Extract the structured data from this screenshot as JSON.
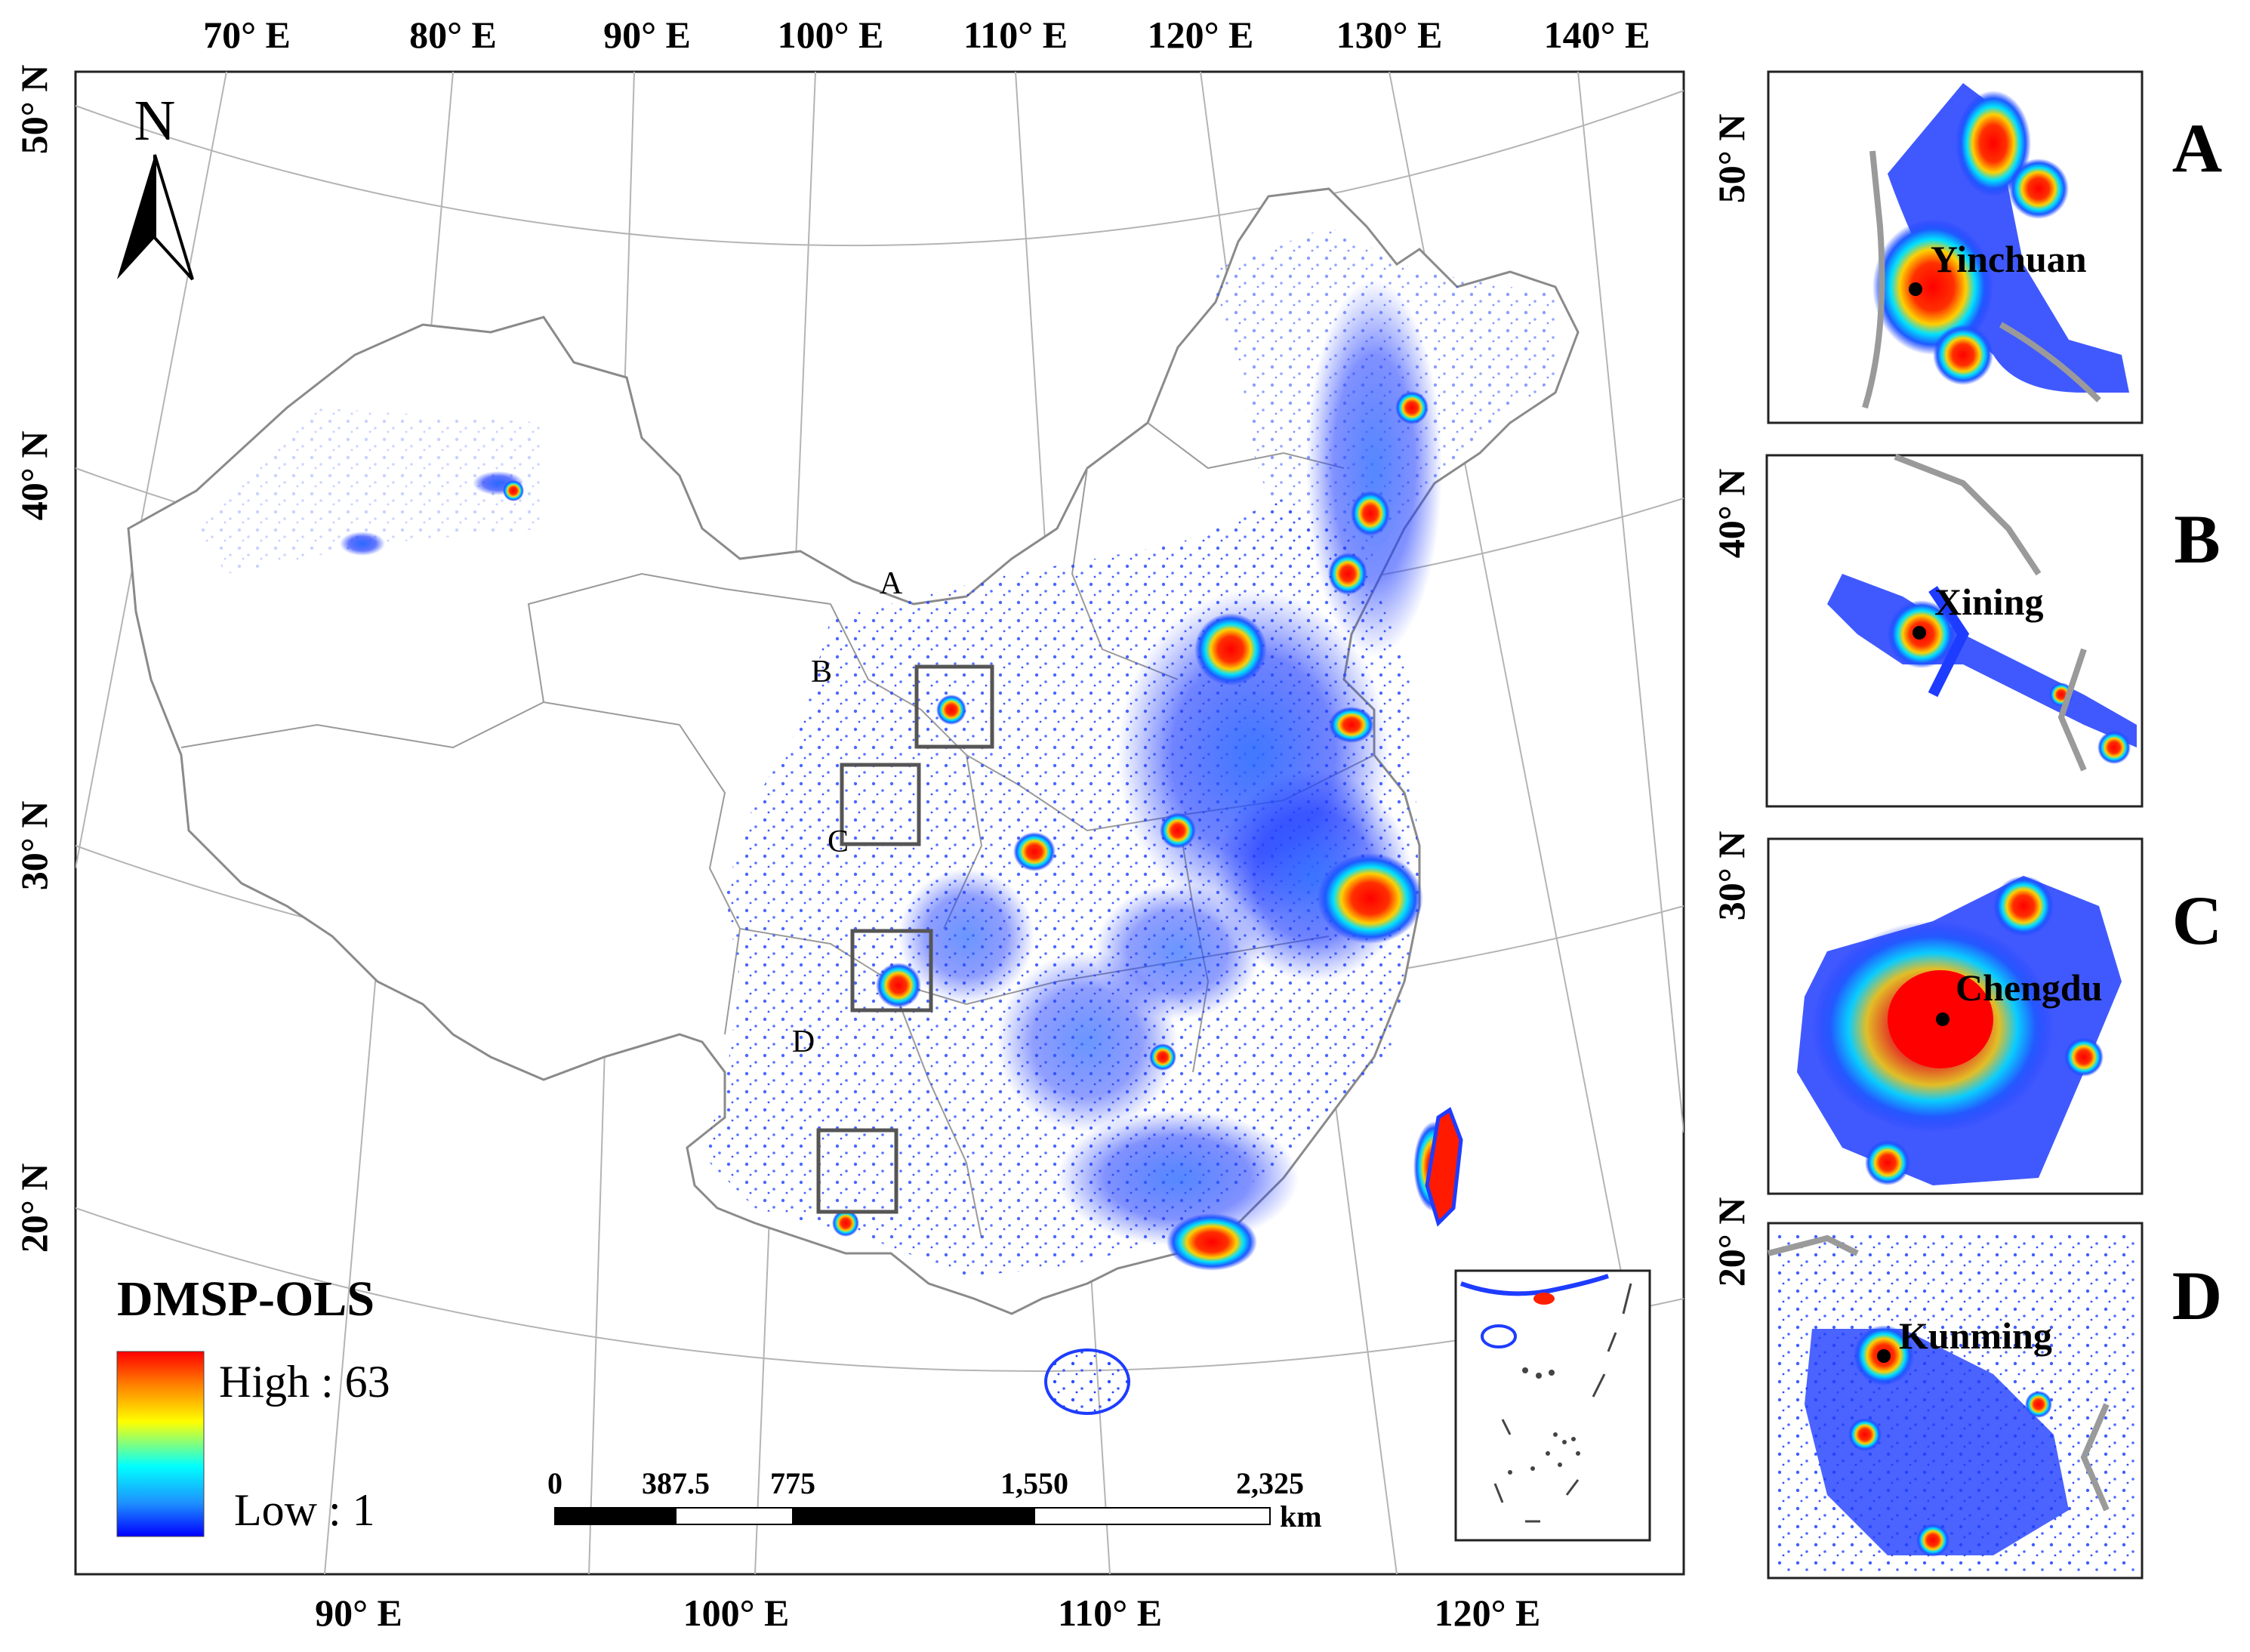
{
  "top_longitude_labels": [
    "70° E",
    "80° E",
    "90° E",
    "100° E",
    "110° E",
    "120° E",
    "130° E",
    "140° E"
  ],
  "bottom_longitude_labels": [
    "90° E",
    "100° E",
    "110° E",
    "120° E"
  ],
  "left_latitude_labels": [
    "50° N",
    "40° N",
    "30° N",
    "20° N"
  ],
  "right_latitude_labels": [
    "50° N",
    "40° N",
    "30° N",
    "20° N"
  ],
  "north_arrow": {
    "label": "N",
    "icon": "north-arrow-icon"
  },
  "legend": {
    "title": "DMSP-OLS",
    "high_label": "High : 63",
    "low_label": "Low : 1",
    "ramp_colors": [
      "#ff0000",
      "#ff8000",
      "#ffff00",
      "#00ffff",
      "#1e90ff",
      "#0000ff"
    ]
  },
  "scale_bar": {
    "ticks": [
      "0",
      "387.5",
      "775",
      "1,550",
      "2,325"
    ],
    "unit": "km"
  },
  "map_markers": [
    "A",
    "B",
    "C",
    "D"
  ],
  "panels": [
    {
      "letter": "A",
      "city": "Yinchuan"
    },
    {
      "letter": "B",
      "city": "Xining"
    },
    {
      "letter": "C",
      "city": "Chengdu"
    },
    {
      "letter": "D",
      "city": "Kunming"
    }
  ],
  "colors": {
    "light_low": "#1e3cff",
    "light_mid": "#00d0ff",
    "light_high": "#ff0000",
    "boundary": "#8a8a8a"
  }
}
